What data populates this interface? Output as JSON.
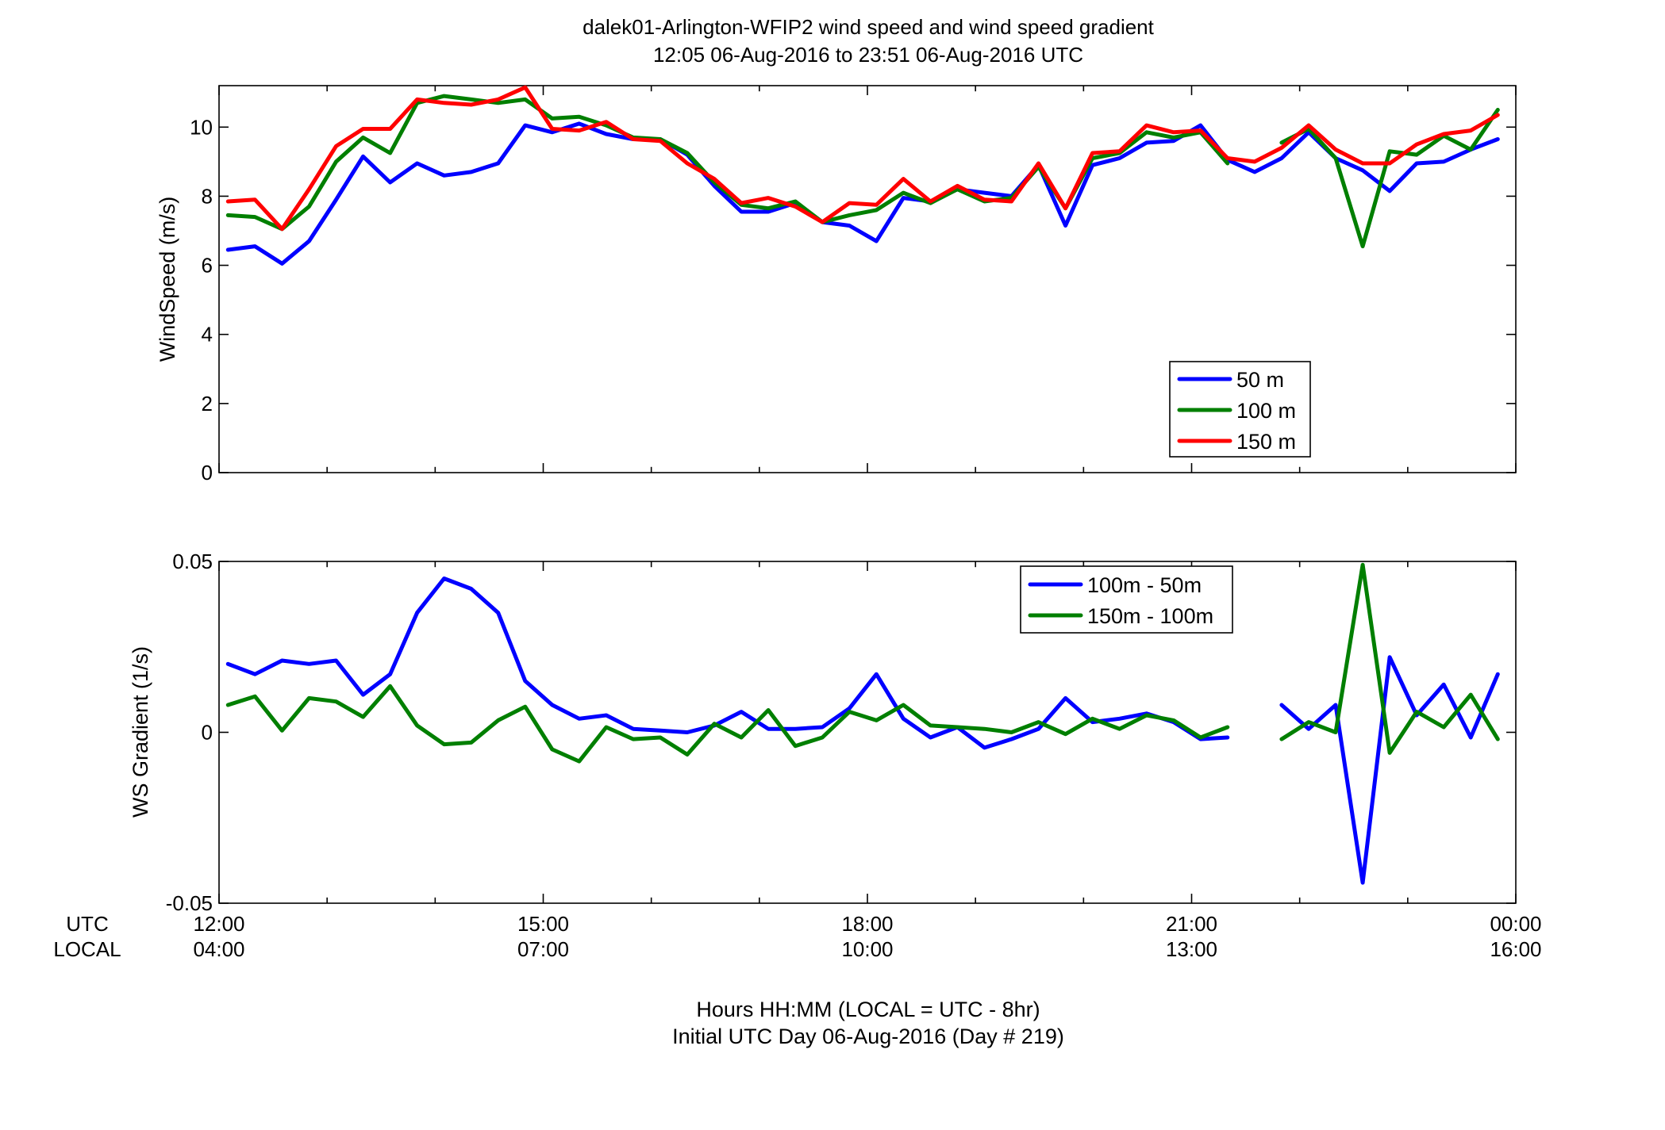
{
  "title": {
    "line1": "dalek01-Arlington-WFIP2  wind speed and wind speed gradient",
    "line2": "12:05 06-Aug-2016 to 23:51 06-Aug-2016  UTC"
  },
  "xaxis": {
    "utc_label": "UTC",
    "local_label": "LOCAL",
    "utc_ticks": [
      "12:00",
      "15:00",
      "18:00",
      "21:00",
      "00:00"
    ],
    "local_ticks": [
      "04:00",
      "07:00",
      "10:00",
      "13:00",
      "16:00"
    ],
    "tick_hours": [
      12,
      15,
      18,
      21,
      24
    ],
    "range_hours": [
      12,
      24
    ],
    "xlabel_line1": "Hours HH:MM  (LOCAL = UTC - 8hr)",
    "xlabel_line2": "Initial UTC Day 06-Aug-2016 (Day # 219)"
  },
  "colors": {
    "blue": "#0000ff",
    "green": "#007f00",
    "red": "#ff0000"
  },
  "chart_data": [
    {
      "type": "line",
      "ylabel": "WindSpeed (m/s)",
      "ylim": [
        0,
        11.2
      ],
      "yticks": [
        0,
        2,
        4,
        6,
        8,
        10
      ],
      "ytick_labels": [
        "0",
        "2",
        "4",
        "6",
        "8",
        "10"
      ],
      "grid": false,
      "legend_position": "lower-right",
      "x_hours": [
        12.083,
        12.333,
        12.583,
        12.833,
        13.083,
        13.333,
        13.583,
        13.833,
        14.083,
        14.333,
        14.583,
        14.833,
        15.083,
        15.333,
        15.583,
        15.833,
        16.083,
        16.333,
        16.583,
        16.833,
        17.083,
        17.333,
        17.583,
        17.833,
        18.083,
        18.333,
        18.583,
        18.833,
        19.083,
        19.333,
        19.583,
        19.833,
        20.083,
        20.333,
        20.583,
        20.833,
        21.083,
        21.333,
        21.583,
        21.833,
        22.083,
        22.333,
        22.583,
        22.833,
        23.083,
        23.333,
        23.583,
        23.833
      ],
      "series": [
        {
          "name": "50 m",
          "color": "#0000ff",
          "values": [
            6.45,
            6.55,
            6.05,
            6.7,
            7.9,
            9.15,
            8.4,
            8.95,
            8.6,
            8.7,
            8.95,
            10.05,
            9.85,
            10.1,
            9.8,
            9.65,
            9.65,
            9.2,
            8.3,
            7.55,
            7.55,
            7.8,
            7.25,
            7.15,
            6.7,
            7.95,
            7.85,
            8.2,
            8.1,
            8.0,
            8.9,
            7.15,
            8.9,
            9.1,
            9.55,
            9.6,
            10.05,
            9.05,
            8.7,
            9.1,
            9.85,
            9.1,
            8.75,
            8.15,
            8.95,
            9.0,
            9.35,
            9.65
          ]
        },
        {
          "name": "100 m",
          "color": "#007f00",
          "values": [
            7.45,
            7.4,
            7.05,
            7.7,
            9.0,
            9.7,
            9.25,
            10.7,
            10.9,
            10.8,
            10.7,
            10.8,
            10.25,
            10.3,
            10.05,
            9.7,
            9.65,
            9.25,
            8.4,
            7.75,
            7.65,
            7.85,
            7.25,
            7.45,
            7.6,
            8.1,
            7.8,
            8.2,
            7.85,
            7.95,
            8.85,
            7.65,
            9.1,
            9.25,
            9.85,
            9.7,
            9.85,
            8.95,
            null,
            9.55,
            9.95,
            9.1,
            6.55,
            9.3,
            9.2,
            9.75,
            9.35,
            10.5
          ]
        },
        {
          "name": "150 m",
          "color": "#ff0000",
          "values": [
            7.85,
            7.9,
            7.05,
            8.2,
            9.45,
            9.95,
            9.95,
            10.8,
            10.7,
            10.65,
            10.8,
            11.15,
            9.95,
            9.9,
            10.15,
            9.65,
            9.6,
            8.95,
            8.5,
            7.8,
            7.95,
            7.7,
            7.25,
            7.8,
            7.75,
            8.5,
            7.85,
            8.3,
            7.9,
            7.85,
            8.95,
            7.65,
            9.25,
            9.3,
            10.05,
            9.85,
            9.9,
            9.1,
            9.0,
            9.4,
            10.05,
            9.35,
            8.95,
            8.95,
            9.5,
            9.8,
            9.9,
            10.35
          ]
        }
      ]
    },
    {
      "type": "line",
      "ylabel": "WS Gradient (1/s)",
      "ylim": [
        -0.05,
        0.05
      ],
      "yticks": [
        -0.05,
        0,
        0.05
      ],
      "ytick_labels": [
        "-0.05",
        "0",
        "0.05"
      ],
      "grid": false,
      "legend_position": "top-right",
      "x_hours": [
        12.083,
        12.333,
        12.583,
        12.833,
        13.083,
        13.333,
        13.583,
        13.833,
        14.083,
        14.333,
        14.583,
        14.833,
        15.083,
        15.333,
        15.583,
        15.833,
        16.083,
        16.333,
        16.583,
        16.833,
        17.083,
        17.333,
        17.583,
        17.833,
        18.083,
        18.333,
        18.583,
        18.833,
        19.083,
        19.333,
        19.583,
        19.833,
        20.083,
        20.333,
        20.583,
        20.833,
        21.083,
        21.333,
        21.583,
        21.833,
        22.083,
        22.333,
        22.583,
        22.833,
        23.083,
        23.333,
        23.583,
        23.833
      ],
      "series": [
        {
          "name": "100m - 50m",
          "color": "#0000ff",
          "values": [
            0.02,
            0.017,
            0.021,
            0.02,
            0.021,
            0.011,
            0.017,
            0.035,
            0.045,
            0.042,
            0.035,
            0.015,
            0.008,
            0.004,
            0.005,
            0.001,
            0.0005,
            0.0,
            0.002,
            0.006,
            0.001,
            0.001,
            0.0015,
            0.007,
            0.017,
            0.004,
            -0.0015,
            0.0015,
            -0.0045,
            -0.002,
            0.001,
            0.01,
            0.003,
            0.004,
            0.0055,
            0.003,
            -0.002,
            -0.0015,
            null,
            0.008,
            0.001,
            0.008,
            -0.044,
            0.022,
            0.005,
            0.014,
            -0.0015,
            0.017
          ]
        },
        {
          "name": "150m - 100m",
          "color": "#007f00",
          "values": [
            0.008,
            0.0105,
            0.0005,
            0.01,
            0.009,
            0.0045,
            0.0135,
            0.002,
            -0.0035,
            -0.003,
            0.0035,
            0.0075,
            -0.005,
            -0.0085,
            0.0015,
            -0.002,
            -0.0015,
            -0.0065,
            0.0025,
            -0.0015,
            0.0065,
            -0.004,
            -0.0015,
            0.006,
            0.0035,
            0.008,
            0.002,
            0.0015,
            0.001,
            0.0,
            0.003,
            -0.0005,
            0.004,
            0.001,
            0.005,
            0.0035,
            -0.0015,
            0.0015,
            null,
            -0.002,
            0.003,
            0.0,
            0.049,
            -0.006,
            0.006,
            0.0015,
            0.011,
            -0.002
          ]
        }
      ]
    }
  ]
}
